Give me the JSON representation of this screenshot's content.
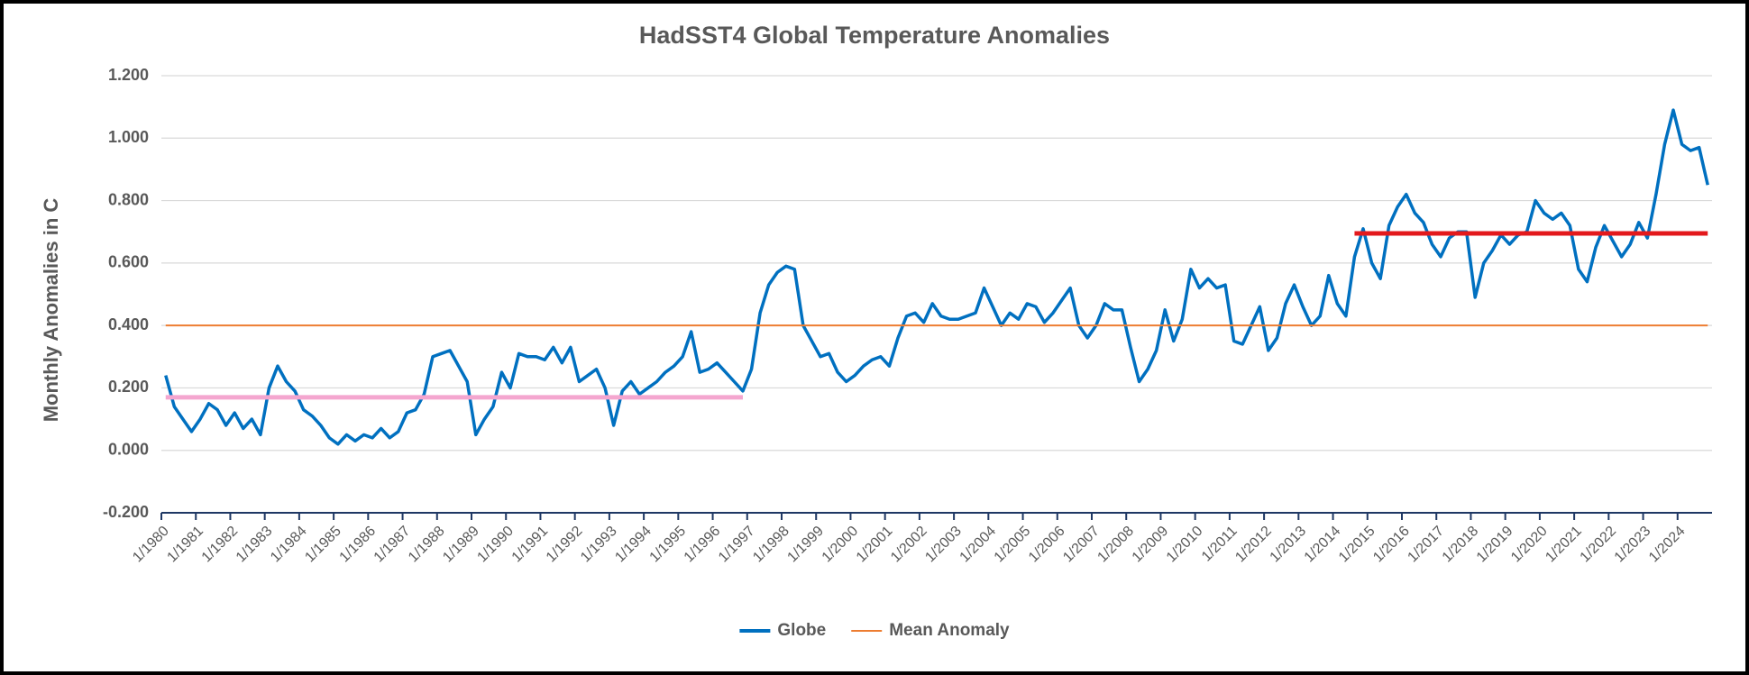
{
  "chart_data": {
    "type": "line",
    "title": "HadSST4 Global Temperature Anomalies",
    "y_label": "Monthly Anomalies in C",
    "categories": [
      "1/1980",
      null,
      null,
      null,
      "1/1981",
      null,
      null,
      null,
      "1/1982",
      null,
      null,
      null,
      "1/1983",
      null,
      null,
      null,
      "1/1984",
      null,
      null,
      null,
      "1/1985",
      null,
      null,
      null,
      "1/1986",
      null,
      null,
      null,
      "1/1987",
      null,
      null,
      null,
      "1/1988",
      null,
      null,
      null,
      "1/1989",
      null,
      null,
      null,
      "1/1990",
      null,
      null,
      null,
      "1/1991",
      null,
      null,
      null,
      "1/1992",
      null,
      null,
      null,
      "1/1993",
      null,
      null,
      null,
      "1/1994",
      null,
      null,
      null,
      "1/1995",
      null,
      null,
      null,
      "1/1996",
      null,
      null,
      null,
      "1/1997",
      null,
      null,
      null,
      "1/1998",
      null,
      null,
      null,
      "1/1999",
      null,
      null,
      null,
      "1/2000",
      null,
      null,
      null,
      "1/2001",
      null,
      null,
      null,
      "1/2002",
      null,
      null,
      null,
      "1/2003",
      null,
      null,
      null,
      "1/2004",
      null,
      null,
      null,
      "1/2005",
      null,
      null,
      null,
      "1/2006",
      null,
      null,
      null,
      "1/2007",
      null,
      null,
      null,
      "1/2008",
      null,
      null,
      null,
      "1/2009",
      null,
      null,
      null,
      "1/2010",
      null,
      null,
      null,
      "1/2011",
      null,
      null,
      null,
      "1/2012",
      null,
      null,
      null,
      "1/2013",
      null,
      null,
      null,
      "1/2014",
      null,
      null,
      null,
      "1/2015",
      null,
      null,
      null,
      "1/2016",
      null,
      null,
      null,
      "1/2017",
      null,
      null,
      null,
      "1/2018",
      null,
      null,
      null,
      "1/2019",
      null,
      null,
      null,
      "1/2020",
      null,
      null,
      null,
      "1/2021",
      null,
      null,
      null,
      "1/2022",
      null,
      null,
      null,
      "1/2023",
      null,
      null,
      null,
      "1/2024",
      null,
      null,
      null
    ],
    "series": [
      {
        "name": "Globe",
        "color": "#0070c0",
        "values": [
          0.24,
          0.14,
          0.1,
          0.06,
          0.1,
          0.15,
          0.13,
          0.08,
          0.12,
          0.07,
          0.1,
          0.05,
          0.2,
          0.27,
          0.22,
          0.19,
          0.13,
          0.11,
          0.08,
          0.04,
          0.02,
          0.05,
          0.03,
          0.05,
          0.04,
          0.07,
          0.04,
          0.06,
          0.12,
          0.13,
          0.18,
          0.3,
          0.31,
          0.32,
          0.27,
          0.22,
          0.05,
          0.1,
          0.14,
          0.25,
          0.2,
          0.31,
          0.3,
          0.3,
          0.29,
          0.33,
          0.28,
          0.33,
          0.22,
          0.24,
          0.26,
          0.2,
          0.08,
          0.19,
          0.22,
          0.18,
          0.2,
          0.22,
          0.25,
          0.27,
          0.3,
          0.38,
          0.25,
          0.26,
          0.28,
          0.25,
          0.22,
          0.19,
          0.26,
          0.44,
          0.53,
          0.57,
          0.59,
          0.58,
          0.4,
          0.35,
          0.3,
          0.31,
          0.25,
          0.22,
          0.24,
          0.27,
          0.29,
          0.3,
          0.27,
          0.36,
          0.43,
          0.44,
          0.41,
          0.47,
          0.43,
          0.42,
          0.42,
          0.43,
          0.44,
          0.52,
          0.46,
          0.4,
          0.44,
          0.42,
          0.47,
          0.46,
          0.41,
          0.44,
          0.48,
          0.52,
          0.4,
          0.36,
          0.4,
          0.47,
          0.45,
          0.45,
          0.33,
          0.22,
          0.26,
          0.32,
          0.45,
          0.35,
          0.42,
          0.58,
          0.52,
          0.55,
          0.52,
          0.53,
          0.35,
          0.34,
          0.4,
          0.46,
          0.32,
          0.36,
          0.47,
          0.53,
          0.46,
          0.4,
          0.43,
          0.56,
          0.47,
          0.43,
          0.62,
          0.71,
          0.6,
          0.55,
          0.72,
          0.78,
          0.82,
          0.76,
          0.73,
          0.66,
          0.62,
          0.68,
          0.7,
          0.7,
          0.49,
          0.6,
          0.64,
          0.69,
          0.66,
          0.69,
          0.7,
          0.8,
          0.76,
          0.74,
          0.76,
          0.72,
          0.58,
          0.54,
          0.65,
          0.72,
          0.67,
          0.62,
          0.66,
          0.73,
          0.68,
          0.82,
          0.98,
          1.09,
          0.98,
          0.96,
          0.97,
          0.85
        ]
      },
      {
        "name": "Mean Anomaly",
        "color": "#ed7d31",
        "values": [
          0.4,
          0.4,
          0.4,
          0.4,
          0.4,
          0.4,
          0.4,
          0.4,
          0.4,
          0.4,
          0.4,
          0.4,
          0.4,
          0.4,
          0.4,
          0.4,
          0.4,
          0.4,
          0.4,
          0.4,
          0.4,
          0.4,
          0.4,
          0.4,
          0.4,
          0.4,
          0.4,
          0.4,
          0.4,
          0.4,
          0.4,
          0.4,
          0.4,
          0.4,
          0.4,
          0.4,
          0.4,
          0.4,
          0.4,
          0.4,
          0.4,
          0.4,
          0.4,
          0.4,
          0.4,
          0.4,
          0.4,
          0.4,
          0.4,
          0.4,
          0.4,
          0.4,
          0.4,
          0.4,
          0.4,
          0.4,
          0.4,
          0.4,
          0.4,
          0.4,
          0.4,
          0.4,
          0.4,
          0.4,
          0.4,
          0.4,
          0.4,
          0.4,
          0.4,
          0.4,
          0.4,
          0.4,
          0.4,
          0.4,
          0.4,
          0.4,
          0.4,
          0.4,
          0.4,
          0.4,
          0.4,
          0.4,
          0.4,
          0.4,
          0.4,
          0.4,
          0.4,
          0.4,
          0.4,
          0.4,
          0.4,
          0.4,
          0.4,
          0.4,
          0.4,
          0.4,
          0.4,
          0.4,
          0.4,
          0.4,
          0.4,
          0.4,
          0.4,
          0.4,
          0.4,
          0.4,
          0.4,
          0.4,
          0.4,
          0.4,
          0.4,
          0.4,
          0.4,
          0.4,
          0.4,
          0.4,
          0.4,
          0.4,
          0.4,
          0.4,
          0.4,
          0.4,
          0.4,
          0.4,
          0.4,
          0.4,
          0.4,
          0.4,
          0.4,
          0.4,
          0.4,
          0.4,
          0.4,
          0.4,
          0.4,
          0.4,
          0.4,
          0.4,
          0.4,
          0.4,
          0.4,
          0.4,
          0.4,
          0.4,
          0.4,
          0.4,
          0.4,
          0.4,
          0.4,
          0.4,
          0.4,
          0.4,
          0.4,
          0.4,
          0.4,
          0.4,
          0.4,
          0.4,
          0.4,
          0.4,
          0.4,
          0.4,
          0.4,
          0.4,
          0.4,
          0.4,
          0.4,
          0.4,
          0.4,
          0.4,
          0.4,
          0.4,
          0.4,
          0.4,
          0.4,
          0.4,
          0.4,
          0.4,
          0.4,
          0.4
        ]
      },
      {
        "color": "#f4a6cf",
        "values": [
          0.17,
          0.17,
          0.17,
          0.17,
          0.17,
          0.17,
          0.17,
          0.17,
          0.17,
          0.17,
          0.17,
          0.17,
          0.17,
          0.17,
          0.17,
          0.17,
          0.17,
          0.17,
          0.17,
          0.17,
          0.17,
          0.17,
          0.17,
          0.17,
          0.17,
          0.17,
          0.17,
          0.17,
          0.17,
          0.17,
          0.17,
          0.17,
          0.17,
          0.17,
          0.17,
          0.17,
          0.17,
          0.17,
          0.17,
          0.17,
          0.17,
          0.17,
          0.17,
          0.17,
          0.17,
          0.17,
          0.17,
          0.17,
          0.17,
          0.17,
          0.17,
          0.17,
          0.17,
          0.17,
          0.17,
          0.17,
          0.17,
          0.17,
          0.17,
          0.17,
          0.17,
          0.17,
          0.17,
          0.17,
          0.17,
          0.17,
          0.17,
          0.17,
          null,
          null,
          null,
          null,
          null,
          null,
          null,
          null,
          null,
          null,
          null,
          null,
          null,
          null,
          null,
          null,
          null,
          null,
          null,
          null,
          null,
          null,
          null,
          null,
          null,
          null,
          null,
          null,
          null,
          null,
          null,
          null,
          null,
          null,
          null,
          null,
          null,
          null,
          null,
          null,
          null,
          null,
          null,
          null,
          null,
          null,
          null,
          null,
          null,
          null,
          null,
          null,
          null,
          null,
          null,
          null,
          null,
          null,
          null,
          null,
          null,
          null,
          null,
          null,
          null,
          null,
          null,
          null,
          null,
          null,
          null,
          null,
          null,
          null,
          null,
          null,
          null,
          null,
          null,
          null,
          null,
          null,
          null,
          null,
          null,
          null,
          null,
          null,
          null,
          null,
          null,
          null,
          null,
          null,
          null,
          null,
          null,
          null,
          null,
          null,
          null,
          null,
          null,
          null,
          null,
          null,
          null,
          null,
          null,
          null,
          null,
          null
        ]
      },
      {
        "color": "#e3191c",
        "values": [
          null,
          null,
          null,
          null,
          null,
          null,
          null,
          null,
          null,
          null,
          null,
          null,
          null,
          null,
          null,
          null,
          null,
          null,
          null,
          null,
          null,
          null,
          null,
          null,
          null,
          null,
          null,
          null,
          null,
          null,
          null,
          null,
          null,
          null,
          null,
          null,
          null,
          null,
          null,
          null,
          null,
          null,
          null,
          null,
          null,
          null,
          null,
          null,
          null,
          null,
          null,
          null,
          null,
          null,
          null,
          null,
          null,
          null,
          null,
          null,
          null,
          null,
          null,
          null,
          null,
          null,
          null,
          null,
          null,
          null,
          null,
          null,
          null,
          null,
          null,
          null,
          null,
          null,
          null,
          null,
          null,
          null,
          null,
          null,
          null,
          null,
          null,
          null,
          null,
          null,
          null,
          null,
          null,
          null,
          null,
          null,
          null,
          null,
          null,
          null,
          null,
          null,
          null,
          null,
          null,
          null,
          null,
          null,
          null,
          null,
          null,
          null,
          null,
          null,
          null,
          null,
          null,
          null,
          null,
          null,
          null,
          null,
          null,
          null,
          null,
          null,
          null,
          null,
          null,
          null,
          null,
          null,
          null,
          null,
          null,
          null,
          null,
          null,
          0.695,
          0.695,
          0.695,
          0.695,
          0.695,
          0.695,
          0.695,
          0.695,
          0.695,
          0.695,
          0.695,
          0.695,
          0.695,
          0.695,
          0.695,
          0.695,
          0.695,
          0.695,
          0.695,
          0.695,
          0.695,
          0.695,
          0.695,
          0.695,
          0.695,
          0.695,
          0.695,
          0.695,
          0.695,
          0.695,
          0.695,
          0.695,
          0.695,
          0.695,
          0.695,
          0.695,
          0.695,
          0.695,
          0.695,
          0.695,
          0.695,
          0.695
        ]
      }
    ],
    "ylim": [
      -0.2,
      1.2
    ],
    "yticks": [
      {
        "value": -0.2,
        "label": "-0.200"
      },
      {
        "value": 0,
        "label": "0.000"
      },
      {
        "value": 0.2,
        "label": "0.200"
      },
      {
        "value": 0.4,
        "label": "0.400"
      },
      {
        "value": 0.6,
        "label": "0.600"
      },
      {
        "value": 0.8,
        "label": "0.800"
      },
      {
        "value": 1.0,
        "label": "1.000"
      },
      {
        "value": 1.2,
        "label": "1.200"
      }
    ],
    "grid": true,
    "legend": "bottom"
  }
}
